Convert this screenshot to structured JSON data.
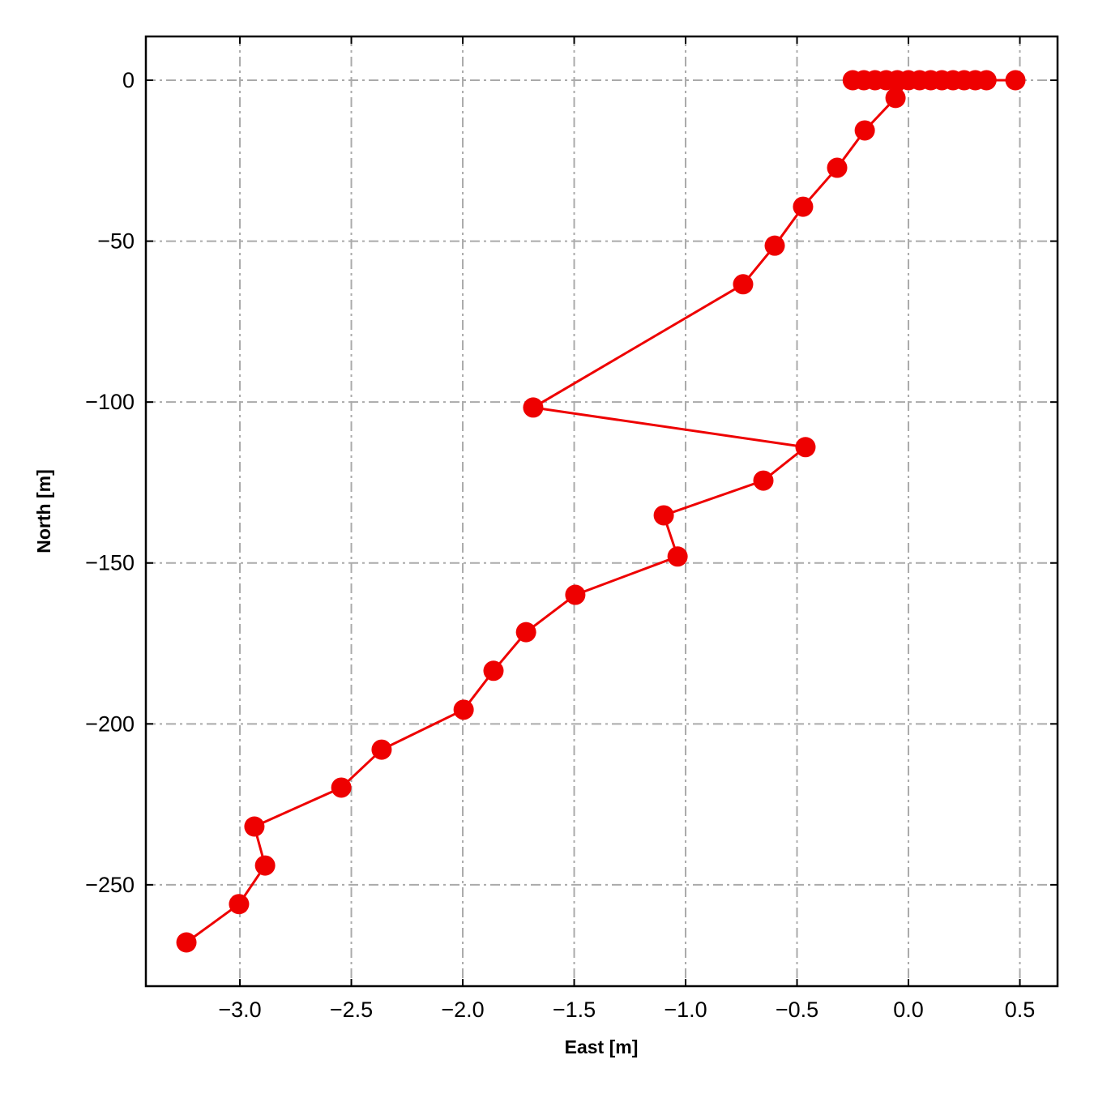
{
  "chart_data": {
    "type": "line",
    "xlabel": "East [m]",
    "ylabel": "North [m]",
    "series": [
      {
        "color": "#ee0000",
        "x": [
          -0.25,
          -0.2,
          -0.15,
          -0.1,
          -0.05,
          0.05,
          0.1,
          0.15,
          0.2,
          0.25,
          0.3,
          0.35,
          0.48,
          0,
          -0.058,
          -0.196,
          -0.32,
          -0.473,
          -0.6,
          -0.742,
          -1.684,
          -0.462,
          -0.651,
          -1.098,
          -1.036,
          -1.495,
          -1.716,
          -1.862,
          -1.996,
          -2.364,
          -2.545,
          -2.935,
          -2.887,
          -3.004,
          -3.24
        ],
        "values": [
          0,
          0,
          0,
          0,
          0,
          0,
          0,
          0,
          0,
          0,
          0,
          0,
          0,
          0,
          -5.5,
          -15.6,
          -27.2,
          -39.3,
          -51.4,
          -63.4,
          -101.7,
          -114.0,
          -124.4,
          -135.2,
          -148.0,
          -159.9,
          -171.5,
          -183.5,
          -195.6,
          -208.0,
          -219.8,
          -231.9,
          -244.0,
          -256.0,
          -267.9
        ]
      }
    ],
    "xlim": [
      -3.422,
      0.669
    ],
    "ylim": [
      -281.5,
      13.6
    ],
    "xticks": [
      {
        "value": -3.0,
        "label": "−3.0"
      },
      {
        "value": -2.5,
        "label": "−2.5"
      },
      {
        "value": -2.0,
        "label": "−2.0"
      },
      {
        "value": -1.5,
        "label": "−1.5"
      },
      {
        "value": -1.0,
        "label": "−1.0"
      },
      {
        "value": -0.5,
        "label": "−0.5"
      },
      {
        "value": 0,
        "label": "0.0"
      },
      0.5
    ],
    "yticks": [
      {
        "value": -250,
        "label": "−250"
      },
      {
        "value": -200,
        "label": "−200"
      },
      {
        "value": -150,
        "label": "−150"
      },
      {
        "value": -100,
        "label": "−100"
      },
      {
        "value": -50,
        "label": "−50"
      },
      0
    ],
    "grid": true
  }
}
